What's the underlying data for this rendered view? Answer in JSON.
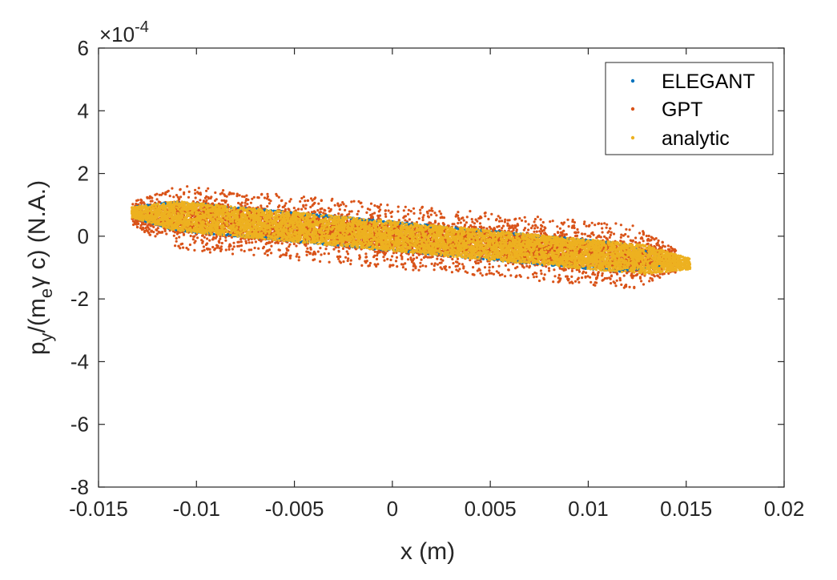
{
  "chart_data": {
    "type": "scatter",
    "xlabel": "x (m)",
    "ylabel": {
      "p": "p",
      "p_sub": "y",
      "open": "/(m",
      "m_sub": "e",
      "gamma": "γ",
      "rest": " c) (N.A.)"
    },
    "y_exponent": {
      "base": "×10",
      "power": "-4"
    },
    "xlim": [
      -0.015,
      0.02
    ],
    "ylim": [
      -8,
      6
    ],
    "x_ticks": [
      -0.015,
      -0.01,
      -0.005,
      0,
      0.005,
      0.01,
      0.015,
      0.02
    ],
    "x_tick_labels": [
      "-0.015",
      "-0.01",
      "-0.005",
      "0",
      "0.005",
      "0.01",
      "0.015",
      "0.02"
    ],
    "y_ticks": [
      -8,
      -6,
      -4,
      -2,
      0,
      2,
      4,
      6
    ],
    "y_tick_labels": [
      "-8",
      "-6",
      "-4",
      "-2",
      "0",
      "2",
      "4",
      "6"
    ],
    "legend_position": "top-right",
    "series": [
      {
        "name": "ELEGANT",
        "color": "#0072BD",
        "center_slope_per_m": -58,
        "x_range": [
          -0.0133,
          0.0137
        ],
        "core_half_width": 0.9,
        "spread": 0.0,
        "point_count": 700
      },
      {
        "name": "GPT",
        "color": "#D95319",
        "center_slope_per_m": -54,
        "x_range": [
          -0.0133,
          0.0145
        ],
        "core_half_width": 0.9,
        "spread": 1.15,
        "point_count": 7000
      },
      {
        "name": "analytic",
        "color": "#EDB120",
        "center_slope_per_m": -58,
        "x_range": [
          -0.0133,
          0.0152
        ],
        "core_half_width": 0.95,
        "spread": 0.0,
        "point_count": 6500
      }
    ]
  }
}
